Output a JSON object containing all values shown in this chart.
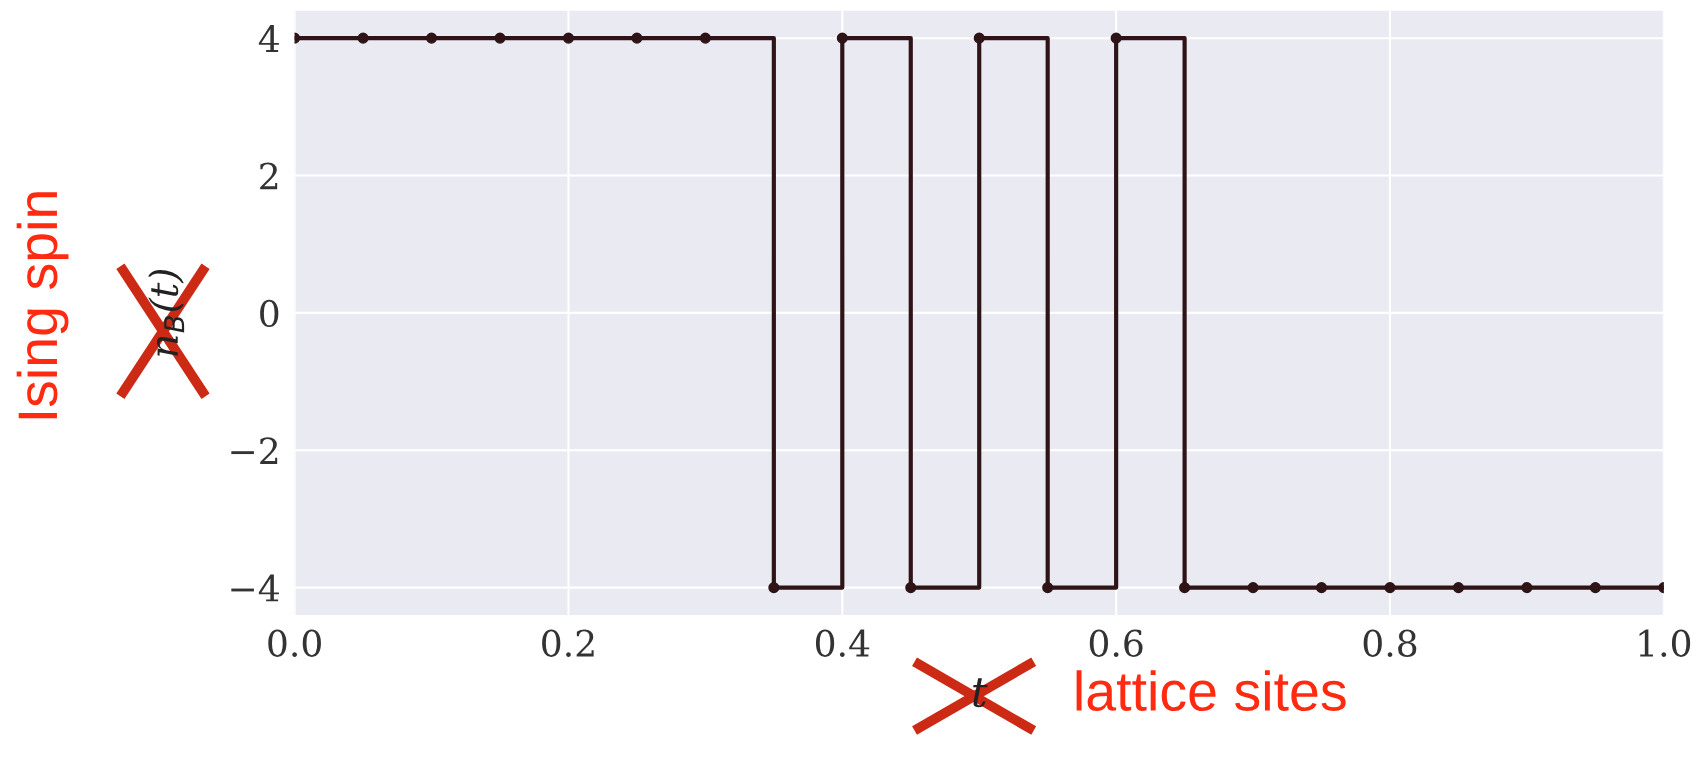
{
  "chart_data": {
    "type": "step",
    "xlabel": "t",
    "ylabel": "n$_{B}$(t)",
    "x": [
      0,
      0.05,
      0.1,
      0.15,
      0.2,
      0.25,
      0.3,
      0.35,
      0.4,
      0.45,
      0.5,
      0.55,
      0.6,
      0.65,
      0.7,
      0.75,
      0.8,
      0.85,
      0.9,
      0.95,
      1.0
    ],
    "values": [
      4,
      4,
      4,
      4,
      4,
      4,
      4,
      -4,
      4,
      -4,
      4,
      -4,
      4,
      -4,
      -4,
      -4,
      -4,
      -4,
      -4,
      -4,
      -4
    ],
    "color": "#2e1416",
    "marker": "circle",
    "line_style": "solid",
    "xlim": [
      0,
      1
    ],
    "ylim": [
      -4.4,
      4.4
    ],
    "xticks": [
      {
        "value": 0,
        "label": "0.0"
      },
      0.2,
      0.4,
      0.6,
      0.8,
      {
        "value": 1,
        "label": "1.0"
      }
    ],
    "yticks": [
      {
        "value": -4,
        "label": "−4"
      },
      {
        "value": -2,
        "label": "−2"
      },
      0,
      2,
      4
    ],
    "grid": true,
    "annotations": [
      "Ising spin",
      "lattice sites"
    ]
  }
}
